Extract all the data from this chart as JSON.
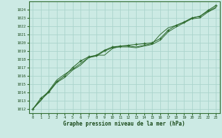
{
  "background_color": "#cceae4",
  "grid_color": "#aad4cc",
  "line_color": "#2d6a2d",
  "marker_color": "#2d6a2d",
  "xlabel": "Graphe pression niveau de la mer (hPa)",
  "x_ticks": [
    0,
    1,
    2,
    3,
    4,
    5,
    6,
    7,
    8,
    9,
    10,
    11,
    12,
    13,
    14,
    15,
    16,
    17,
    18,
    19,
    20,
    21,
    22,
    23
  ],
  "ylim": [
    1011.5,
    1025.0
  ],
  "xlim": [
    -0.5,
    23.5
  ],
  "y_ticks": [
    1012,
    1013,
    1014,
    1015,
    1016,
    1017,
    1018,
    1019,
    1020,
    1021,
    1022,
    1023,
    1024
  ],
  "series": [
    [
      1012.0,
      1013.3,
      1014.1,
      1015.3,
      1016.0,
      1017.0,
      1017.8,
      1018.3,
      1018.5,
      1019.1,
      1019.5,
      1019.6,
      1019.7,
      1019.8,
      1019.9,
      1020.0,
      1020.5,
      1021.5,
      1022.1,
      1022.5,
      1023.0,
      1023.2,
      1023.9,
      1024.5
    ],
    [
      1012.0,
      1013.0,
      1014.2,
      1015.5,
      1016.2,
      1016.8,
      1017.5,
      1018.2,
      1018.5,
      1018.5,
      1019.3,
      1019.6,
      1019.6,
      1019.5,
      1019.7,
      1019.9,
      1021.0,
      1021.8,
      1022.1,
      1022.5,
      1023.0,
      1023.2,
      1023.8,
      1024.3
    ],
    [
      1012.0,
      1013.1,
      1014.0,
      1015.2,
      1015.8,
      1016.7,
      1017.3,
      1018.2,
      1018.4,
      1019.0,
      1019.4,
      1019.5,
      1019.5,
      1019.4,
      1019.6,
      1019.8,
      1020.3,
      1021.3,
      1021.9,
      1022.4,
      1022.9,
      1023.0,
      1023.7,
      1024.2
    ]
  ]
}
